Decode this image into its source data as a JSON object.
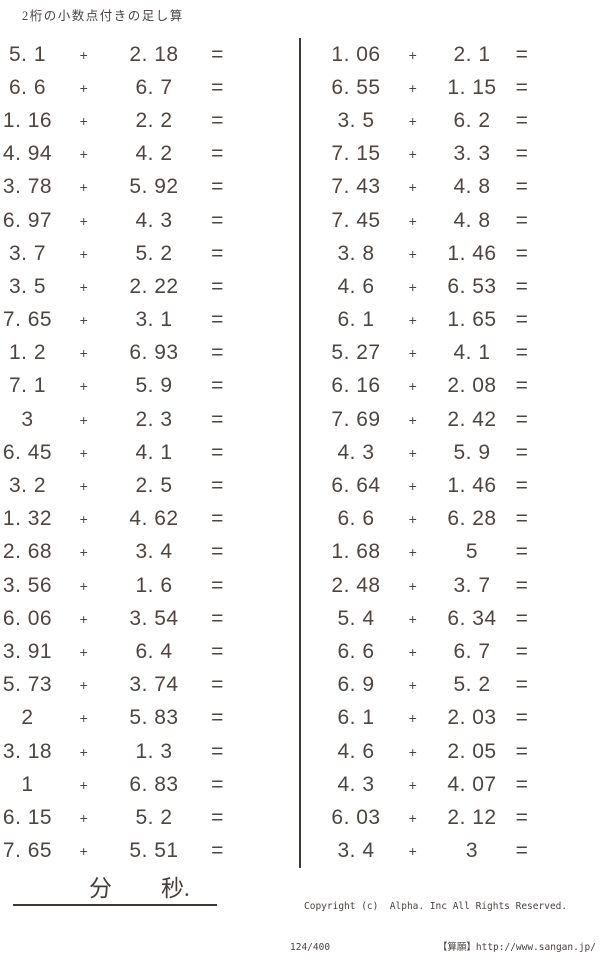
{
  "title": "2桁の小数点付きの足し算",
  "plus": "+",
  "equals": "=",
  "columns": [
    {
      "problems": [
        {
          "a": "5. 1",
          "b": "2. 18"
        },
        {
          "a": "6. 6",
          "b": "6. 7"
        },
        {
          "a": "1. 16",
          "b": "2. 2"
        },
        {
          "a": "4. 94",
          "b": "4. 2"
        },
        {
          "a": "3. 78",
          "b": "5. 92"
        },
        {
          "a": "6. 97",
          "b": "4. 3"
        },
        {
          "a": "3. 7",
          "b": "5. 2"
        },
        {
          "a": "3. 5",
          "b": "2. 22"
        },
        {
          "a": "7. 65",
          "b": "3. 1"
        },
        {
          "a": "1. 2",
          "b": "6. 93"
        },
        {
          "a": "7. 1",
          "b": "5. 9"
        },
        {
          "a": "3",
          "b": "2. 3"
        },
        {
          "a": "6. 45",
          "b": "4. 1"
        },
        {
          "a": "3. 2",
          "b": "2. 5"
        },
        {
          "a": "1. 32",
          "b": "4. 62"
        },
        {
          "a": "2. 68",
          "b": "3. 4"
        },
        {
          "a": "3. 56",
          "b": "1. 6"
        },
        {
          "a": "6. 06",
          "b": "3. 54"
        },
        {
          "a": "3. 91",
          "b": "6. 4"
        },
        {
          "a": "5. 73",
          "b": "3. 74"
        },
        {
          "a": "2",
          "b": "5. 83"
        },
        {
          "a": "3. 18",
          "b": "1. 3"
        },
        {
          "a": "1",
          "b": "6. 83"
        },
        {
          "a": "6. 15",
          "b": "5. 2"
        },
        {
          "a": "7. 65",
          "b": "5. 51"
        }
      ]
    },
    {
      "problems": [
        {
          "a": "1. 06",
          "b": "2. 1"
        },
        {
          "a": "6. 55",
          "b": "1. 15"
        },
        {
          "a": "3. 5",
          "b": "6. 2"
        },
        {
          "a": "7. 15",
          "b": "3. 3"
        },
        {
          "a": "7. 43",
          "b": "4. 8"
        },
        {
          "a": "7. 45",
          "b": "4. 8"
        },
        {
          "a": "3. 8",
          "b": "1. 46"
        },
        {
          "a": "4. 6",
          "b": "6. 53"
        },
        {
          "a": "6. 1",
          "b": "1. 65"
        },
        {
          "a": "5. 27",
          "b": "4. 1"
        },
        {
          "a": "6. 16",
          "b": "2. 08"
        },
        {
          "a": "7. 69",
          "b": "2. 42"
        },
        {
          "a": "4. 3",
          "b": "5. 9"
        },
        {
          "a": "6. 64",
          "b": "1. 46"
        },
        {
          "a": "6. 6",
          "b": "6. 28"
        },
        {
          "a": "1. 68",
          "b": "5"
        },
        {
          "a": "2. 48",
          "b": "3. 7"
        },
        {
          "a": "5. 4",
          "b": "6. 34"
        },
        {
          "a": "6. 6",
          "b": "6. 7"
        },
        {
          "a": "6. 9",
          "b": "5. 2"
        },
        {
          "a": "6. 1",
          "b": "2. 03"
        },
        {
          "a": "4. 6",
          "b": "2. 05"
        },
        {
          "a": "4. 3",
          "b": "4. 07"
        },
        {
          "a": "6. 03",
          "b": "2. 12"
        },
        {
          "a": "3. 4",
          "b": "3"
        }
      ]
    }
  ],
  "footer": {
    "minutes_label": "分",
    "seconds_label": "秒.",
    "copyright": "Copyright (c)  Alpha. Inc All Rights Reserved.",
    "page": "124/400",
    "site": "【算願】http://www.sangan.jp/"
  }
}
